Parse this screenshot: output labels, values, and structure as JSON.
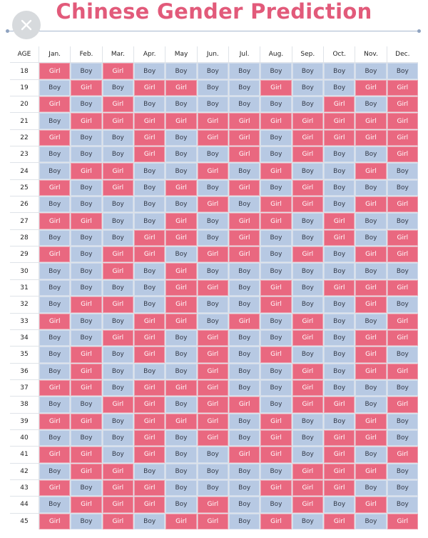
{
  "title": "Chinese Gender Prediction",
  "colors": {
    "title": "#e25a7a",
    "boy": "#b7c9e3",
    "girl": "#e96880"
  },
  "icons": {
    "close": "close-icon"
  },
  "table": {
    "age_header": "AGE",
    "months": [
      "Jan.",
      "Feb.",
      "Mar.",
      "Apr.",
      "May",
      "Jun.",
      "Jul.",
      "Aug.",
      "Sep.",
      "Oct.",
      "Nov.",
      "Dec."
    ],
    "rows": [
      {
        "age": "18",
        "cells": [
          "Girl",
          "Boy",
          "Girl",
          "Boy",
          "Boy",
          "Boy",
          "Boy",
          "Boy",
          "Boy",
          "Boy",
          "Boy",
          "Boy"
        ]
      },
      {
        "age": "19",
        "cells": [
          "Boy",
          "Girl",
          "Boy",
          "Girl",
          "Girl",
          "Boy",
          "Boy",
          "Girl",
          "Boy",
          "Boy",
          "Girl",
          "Girl"
        ]
      },
      {
        "age": "20",
        "cells": [
          "Girl",
          "Boy",
          "Girl",
          "Boy",
          "Boy",
          "Boy",
          "Boy",
          "Boy",
          "Boy",
          "Girl",
          "Boy",
          "Girl"
        ]
      },
      {
        "age": "21",
        "cells": [
          "Boy",
          "Girl",
          "Girl",
          "Girl",
          "Girl",
          "Girl",
          "Girl",
          "Girl",
          "Girl",
          "Girl",
          "Girl",
          "Girl"
        ]
      },
      {
        "age": "22",
        "cells": [
          "Girl",
          "Boy",
          "Boy",
          "Girl",
          "Boy",
          "Girl",
          "Girl",
          "Boy",
          "Girl",
          "Girl",
          "Girl",
          "Girl"
        ]
      },
      {
        "age": "23",
        "cells": [
          "Boy",
          "Boy",
          "Boy",
          "Girl",
          "Boy",
          "Boy",
          "Girl",
          "Boy",
          "Girl",
          "Boy",
          "Boy",
          "Girl"
        ]
      },
      {
        "age": "24",
        "cells": [
          "Boy",
          "Girl",
          "Girl",
          "Boy",
          "Boy",
          "Girl",
          "Boy",
          "Girl",
          "Boy",
          "Boy",
          "Girl",
          "Boy"
        ]
      },
      {
        "age": "25",
        "cells": [
          "Girl",
          "Boy",
          "Girl",
          "Boy",
          "Girl",
          "Boy",
          "Girl",
          "Boy",
          "Girl",
          "Boy",
          "Boy",
          "Boy"
        ]
      },
      {
        "age": "26",
        "cells": [
          "Boy",
          "Boy",
          "Boy",
          "Boy",
          "Boy",
          "Girl",
          "Boy",
          "Girl",
          "Girl",
          "Boy",
          "Girl",
          "Girl"
        ]
      },
      {
        "age": "27",
        "cells": [
          "Girl",
          "Girl",
          "Boy",
          "Boy",
          "Girl",
          "Boy",
          "Girl",
          "Girl",
          "Boy",
          "Girl",
          "Boy",
          "Boy"
        ]
      },
      {
        "age": "28",
        "cells": [
          "Boy",
          "Boy",
          "Boy",
          "Girl",
          "Girl",
          "Boy",
          "Girl",
          "Boy",
          "Boy",
          "Girl",
          "Boy",
          "Girl"
        ]
      },
      {
        "age": "29",
        "cells": [
          "Girl",
          "Boy",
          "Girl",
          "Girl",
          "Boy",
          "Girl",
          "Girl",
          "Boy",
          "Girl",
          "Boy",
          "Girl",
          "Girl"
        ]
      },
      {
        "age": "30",
        "cells": [
          "Boy",
          "Boy",
          "Girl",
          "Boy",
          "Girl",
          "Boy",
          "Boy",
          "Boy",
          "Boy",
          "Boy",
          "Boy",
          "Boy"
        ]
      },
      {
        "age": "31",
        "cells": [
          "Boy",
          "Boy",
          "Boy",
          "Boy",
          "Girl",
          "Girl",
          "Boy",
          "Girl",
          "Boy",
          "Girl",
          "Girl",
          "Girl"
        ]
      },
      {
        "age": "32",
        "cells": [
          "Boy",
          "Girl",
          "Girl",
          "Boy",
          "Girl",
          "Boy",
          "Boy",
          "Girl",
          "Boy",
          "Boy",
          "Girl",
          "Boy"
        ]
      },
      {
        "age": "33",
        "cells": [
          "Girl",
          "Boy",
          "Boy",
          "Girl",
          "Girl",
          "Boy",
          "Girl",
          "Boy",
          "Girl",
          "Boy",
          "Boy",
          "Girl"
        ]
      },
      {
        "age": "34",
        "cells": [
          "Boy",
          "Boy",
          "Girl",
          "Girl",
          "Boy",
          "Girl",
          "Boy",
          "Boy",
          "Girl",
          "Boy",
          "Girl",
          "Girl"
        ]
      },
      {
        "age": "35",
        "cells": [
          "Boy",
          "Girl",
          "Boy",
          "Girl",
          "Boy",
          "Girl",
          "Boy",
          "Girl",
          "Boy",
          "Boy",
          "Girl",
          "Boy"
        ]
      },
      {
        "age": "36",
        "cells": [
          "Boy",
          "Girl",
          "Boy",
          "Boy",
          "Boy",
          "Girl",
          "Boy",
          "Boy",
          "Girl",
          "Boy",
          "Girl",
          "Girl"
        ]
      },
      {
        "age": "37",
        "cells": [
          "Girl",
          "Girl",
          "Boy",
          "Girl",
          "Girl",
          "Girl",
          "Boy",
          "Boy",
          "Girl",
          "Boy",
          "Boy",
          "Boy"
        ]
      },
      {
        "age": "38",
        "cells": [
          "Boy",
          "Boy",
          "Girl",
          "Girl",
          "Boy",
          "Girl",
          "Girl",
          "Boy",
          "Girl",
          "Girl",
          "Boy",
          "Girl"
        ]
      },
      {
        "age": "39",
        "cells": [
          "Girl",
          "Girl",
          "Boy",
          "Girl",
          "Girl",
          "Girl",
          "Boy",
          "Girl",
          "Boy",
          "Boy",
          "Girl",
          "Boy"
        ]
      },
      {
        "age": "40",
        "cells": [
          "Boy",
          "Boy",
          "Boy",
          "Girl",
          "Boy",
          "Girl",
          "Boy",
          "Girl",
          "Boy",
          "Girl",
          "Girl",
          "Boy"
        ]
      },
      {
        "age": "41",
        "cells": [
          "Girl",
          "Girl",
          "Boy",
          "Girl",
          "Boy",
          "Boy",
          "Girl",
          "Girl",
          "Boy",
          "Girl",
          "Boy",
          "Girl"
        ]
      },
      {
        "age": "42",
        "cells": [
          "Boy",
          "Girl",
          "Girl",
          "Boy",
          "Boy",
          "Boy",
          "Boy",
          "Boy",
          "Girl",
          "Girl",
          "Girl",
          "Boy"
        ]
      },
      {
        "age": "43",
        "cells": [
          "Girl",
          "Boy",
          "Girl",
          "Girl",
          "Boy",
          "Boy",
          "Boy",
          "Girl",
          "Girl",
          "Girl",
          "Boy",
          "Boy"
        ]
      },
      {
        "age": "44",
        "cells": [
          "Boy",
          "Girl",
          "Girl",
          "Girl",
          "Boy",
          "Girl",
          "Boy",
          "Boy",
          "Girl",
          "Boy",
          "Girl",
          "Boy"
        ]
      },
      {
        "age": "45",
        "cells": [
          "Girl",
          "Boy",
          "Girl",
          "Boy",
          "Girl",
          "Girl",
          "Boy",
          "Girl",
          "Boy",
          "Girl",
          "Boy",
          "Girl"
        ]
      }
    ]
  }
}
